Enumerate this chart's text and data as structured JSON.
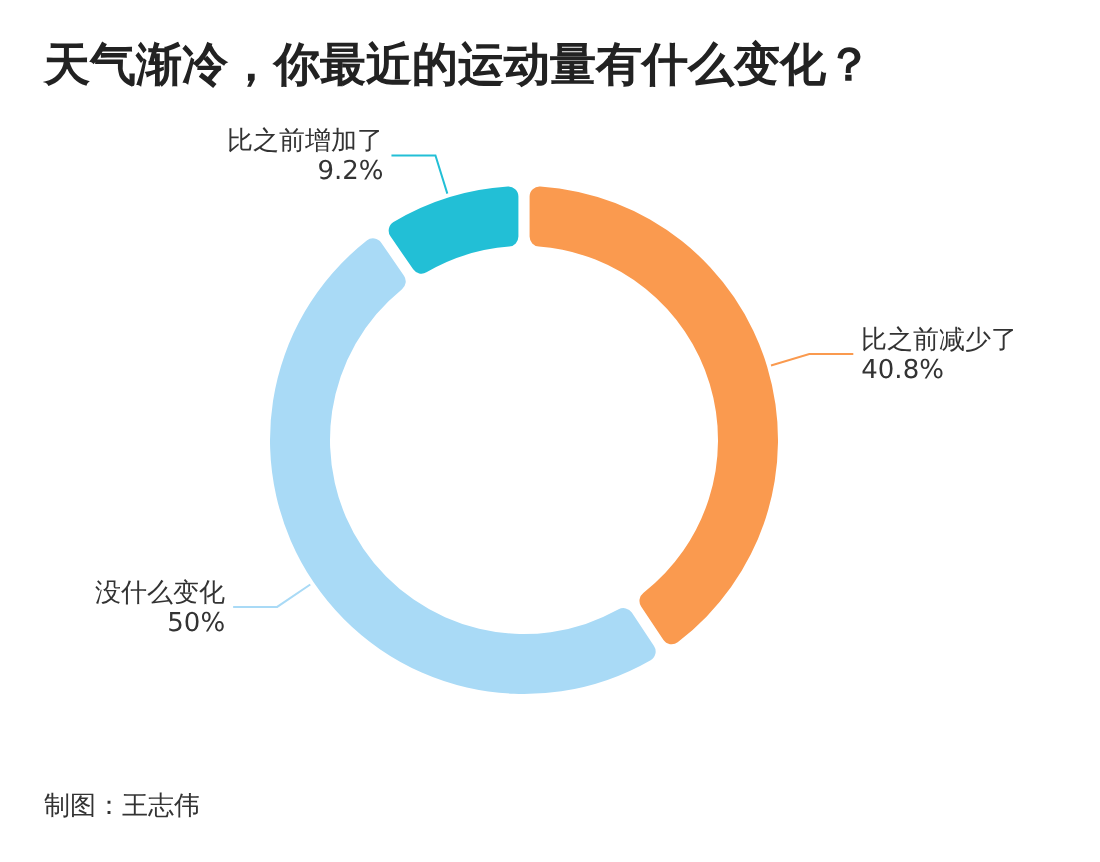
{
  "chart_data": {
    "type": "donut",
    "title": "天气渐冷，你最近的运动量有什么变化？",
    "categories": [
      "比之前减少了",
      "没什么变化",
      "比之前增加了"
    ],
    "values": [
      40.8,
      50,
      9.2
    ],
    "value_labels": [
      "40.8%",
      "50%",
      "9.2%"
    ],
    "colors": [
      "#fa9a4f",
      "#a9daf6",
      "#22bfd6"
    ],
    "annotations": [
      "制图：王志伟"
    ]
  }
}
